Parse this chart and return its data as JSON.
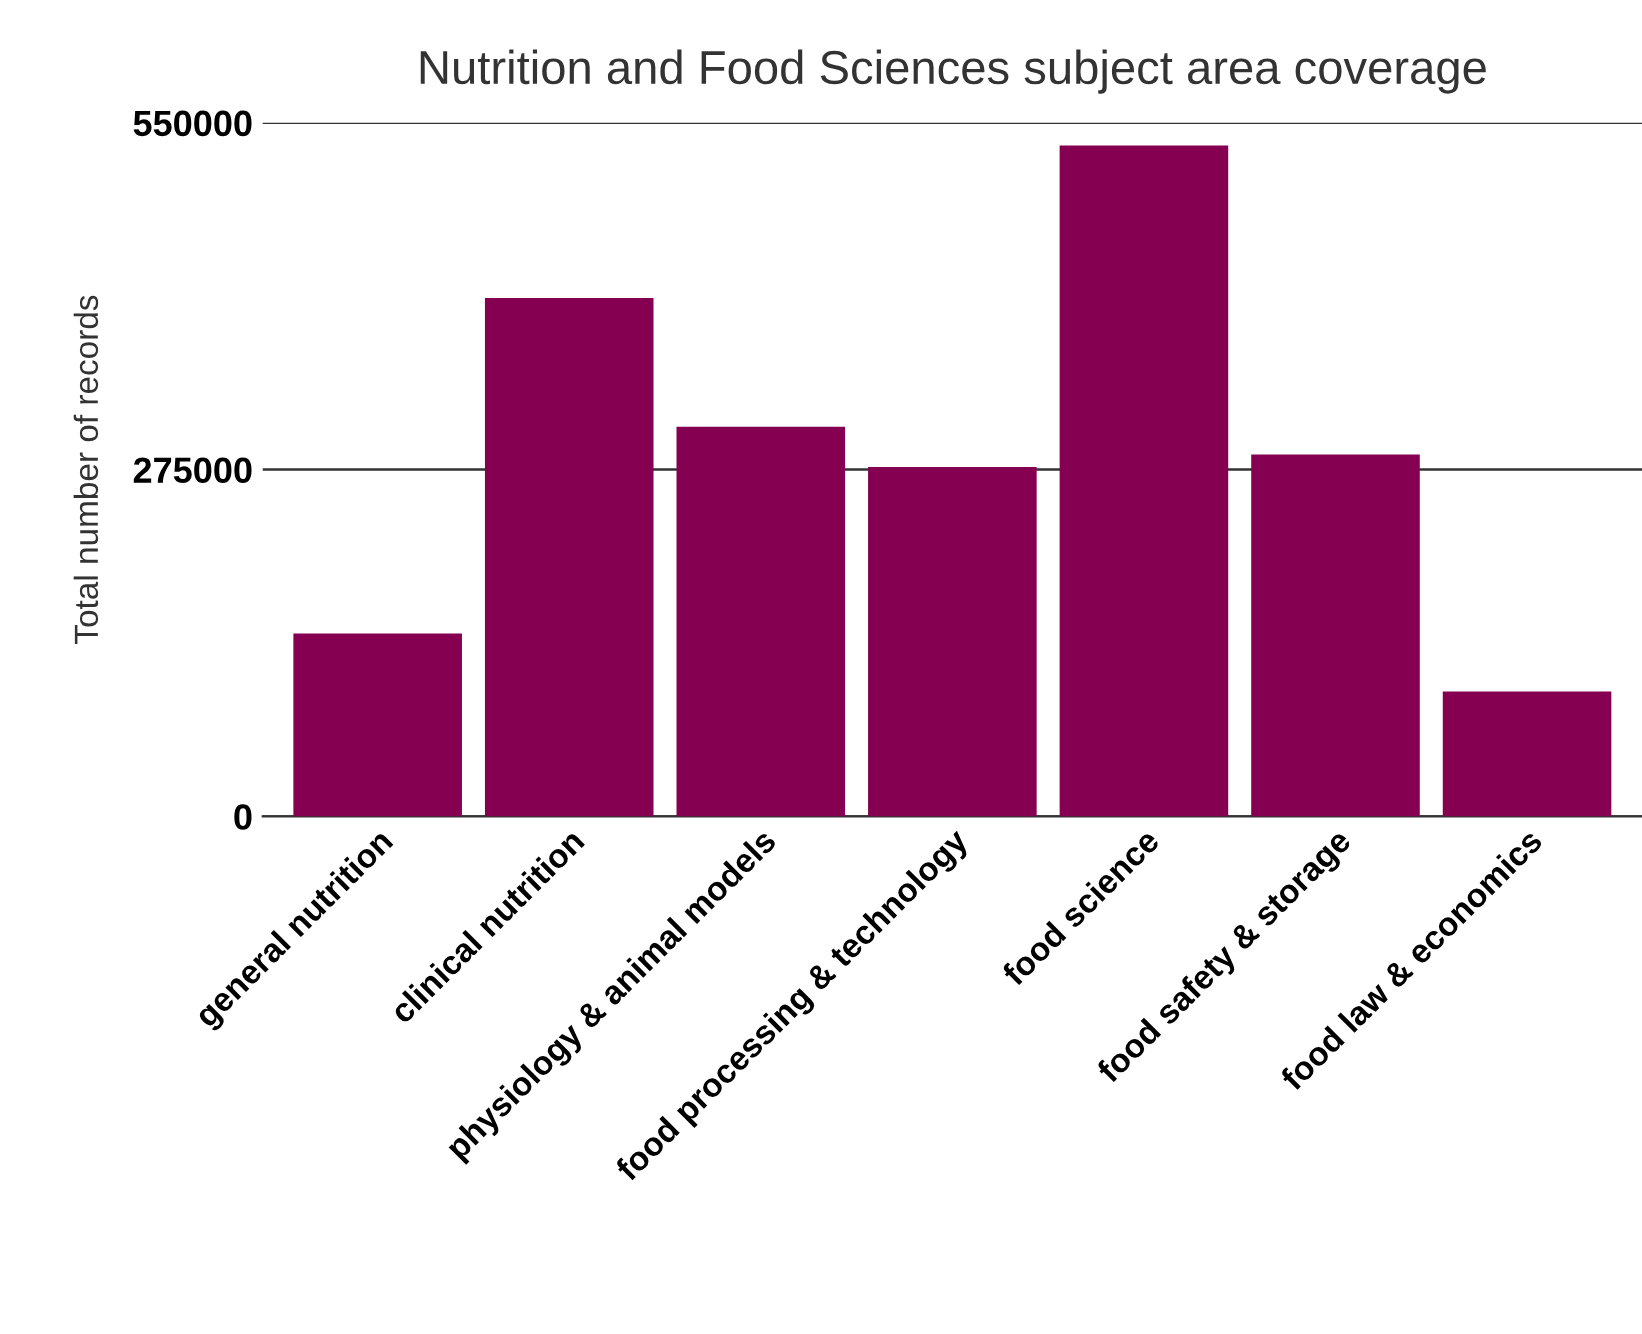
{
  "chart_data": {
    "type": "bar",
    "title": "Nutrition and Food Sciences subject area coverage",
    "ylabel": "Total number of records",
    "categories": [
      "general nutrition",
      "clinical nutrition",
      "physiology & animal models",
      "food processing & technology",
      "food science",
      "food safety & storage",
      "food law & economics"
    ],
    "values": [
      145000,
      411000,
      309000,
      277000,
      532000,
      287000,
      99000
    ],
    "color": "#850050",
    "ylim": [
      0,
      550000
    ],
    "yticks": [
      0,
      275000,
      550000
    ],
    "grid": "y"
  }
}
